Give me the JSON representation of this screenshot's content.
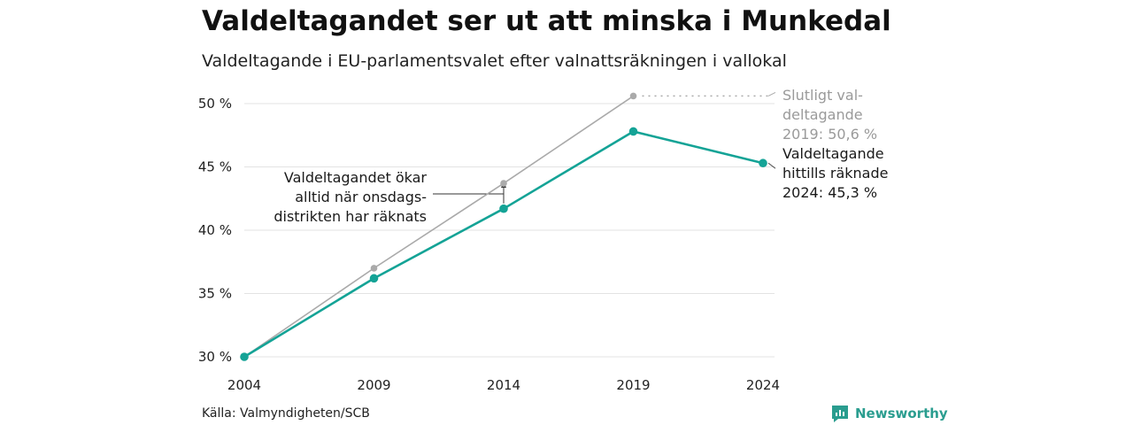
{
  "header": {
    "title": "Valdeltagandet ser ut att minska i Munkedal",
    "subtitle": "Valdeltagande i EU-parlamentsvalet efter valnattsräkningen i vallokal"
  },
  "footer": {
    "source": "Källa: Valmyndigheten/SCB",
    "brand": "Newsworthy"
  },
  "colors": {
    "current": "#14a396",
    "final": "#aaaaaa",
    "grid": "#e3e3e3",
    "brand": "#2a9d8f"
  },
  "chart_data": {
    "type": "line",
    "title": "Valdeltagandet ser ut att minska i Munkedal",
    "subtitle": "Valdeltagande i EU-parlamentsvalet efter valnattsräkningen i vallokal",
    "x": [
      2004,
      2009,
      2014,
      2019,
      2024
    ],
    "x_tick_labels": [
      "2004",
      "2009",
      "2014",
      "2019",
      "2024"
    ],
    "y_ticks": [
      30,
      35,
      40,
      45,
      50
    ],
    "y_tick_labels": [
      "30 %",
      "35 %",
      "40 %",
      "45 %",
      "50 %"
    ],
    "ylim": [
      30,
      50
    ],
    "grid": true,
    "series": [
      {
        "name": "Slutligt valdeltagande",
        "color": "#aaaaaa",
        "x": [
          2004,
          2009,
          2014,
          2019
        ],
        "values": [
          30.0,
          37.0,
          43.7,
          50.6
        ]
      },
      {
        "name": "Valdeltagande hittills räknade",
        "color": "#14a396",
        "x": [
          2004,
          2009,
          2014,
          2019,
          2024
        ],
        "values": [
          30.0,
          36.2,
          41.7,
          47.8,
          45.3
        ]
      }
    ],
    "annotations": {
      "final": [
        "Slutligt val-",
        "deltagande",
        "2019: 50,6 %"
      ],
      "current": [
        "Valdeltagande",
        "hittills räknade",
        "2024: 45,3 %"
      ],
      "wednesday": [
        "Valdeltagandet ökar",
        "alltid när onsdags-",
        "distrikten har räknats"
      ]
    }
  }
}
